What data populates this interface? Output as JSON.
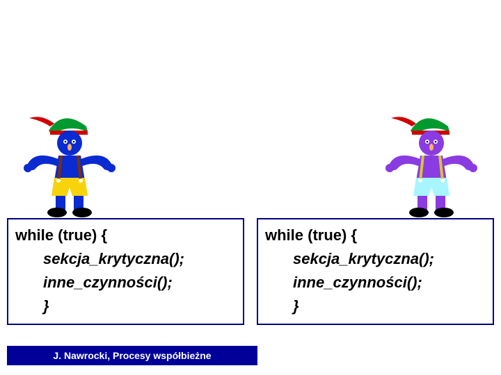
{
  "figures": {
    "left": {
      "body_color": "#0a2bd1",
      "pants_color": "#f7d30b",
      "suspender_color": "#7a300a",
      "hat_color": "#009a2e",
      "feather_color": "#d00000",
      "hat_band_color": "#d00000",
      "shoe_color": "#000000"
    },
    "right": {
      "body_color": "#8a3be2",
      "pants_color": "#a7f5ff",
      "suspender_color": "#d8c43a",
      "hat_color": "#009a2e",
      "feather_color": "#d00000",
      "hat_band_color": "#d00000",
      "shoe_color": "#000000"
    }
  },
  "code": {
    "left": {
      "l1": "while (true) {",
      "l2": "sekcja_krytyczna();",
      "l3": "inne_czynności();",
      "l4": "}"
    },
    "right": {
      "l1": "while (true) {",
      "l2": "sekcja_krytyczna();",
      "l3": "inne_czynności();",
      "l4": "}"
    }
  },
  "footer": "J. Nawrocki, Procesy współbieżne",
  "colors": {
    "box_border": "#000080",
    "footer_bg": "#000099",
    "footer_text": "#ffffff",
    "code_text": "#000000",
    "page_bg": "#ffffff"
  },
  "code_fontsize": 22,
  "footer_fontsize": 14
}
